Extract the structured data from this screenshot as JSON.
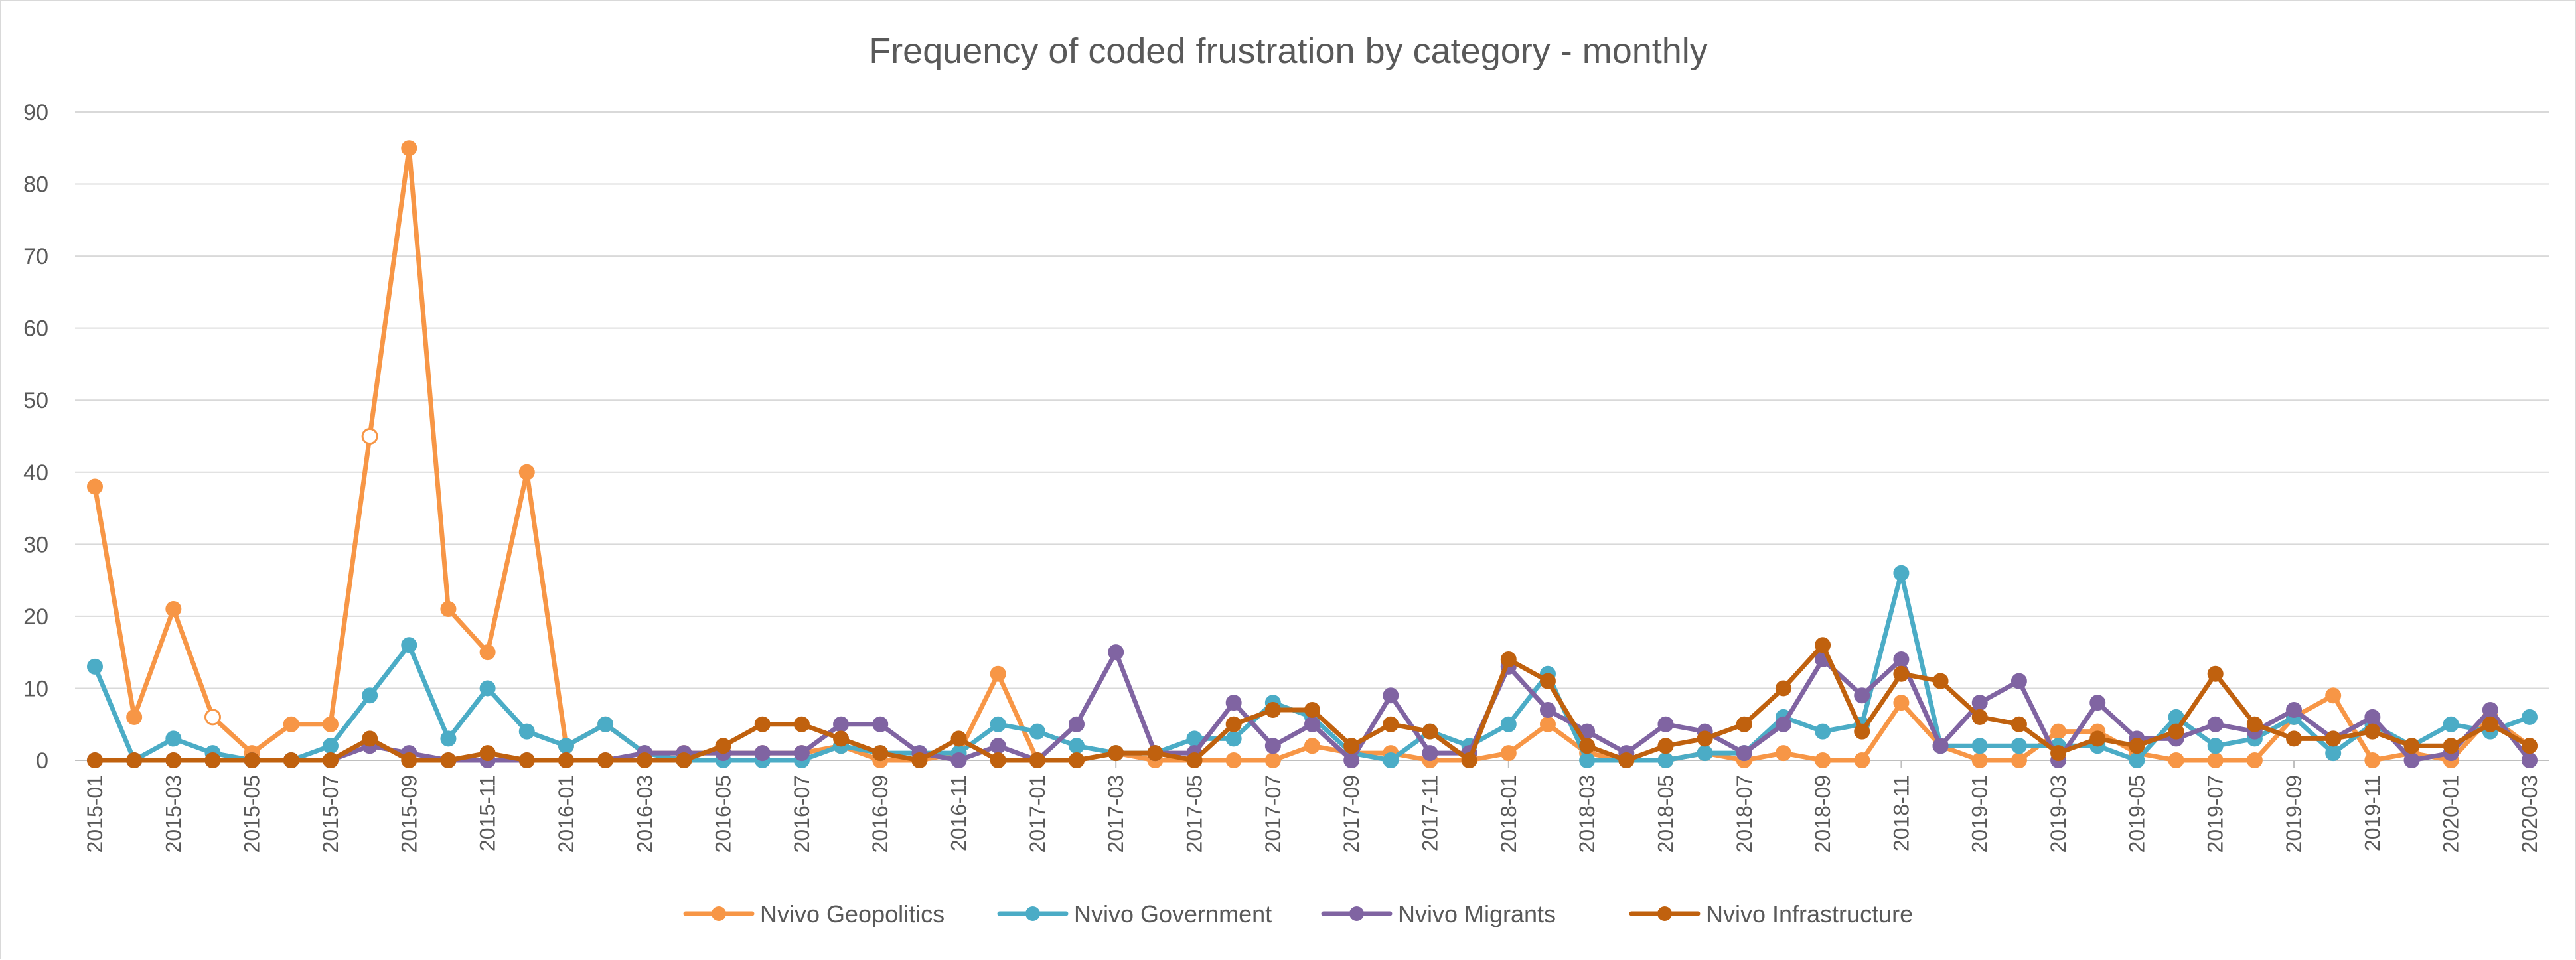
{
  "chart_data": {
    "type": "line",
    "title": "Frequency of coded frustration by category - monthly",
    "xlabel": "",
    "ylabel": "",
    "ylim": [
      0,
      90
    ],
    "yticks": [
      "0",
      "10",
      "20",
      "30",
      "40",
      "50",
      "60",
      "70",
      "80",
      "90"
    ],
    "grid": true,
    "legend_position": "bottom",
    "x": [
      "2015-01",
      "2015-02",
      "2015-03",
      "2015-04",
      "2015-05",
      "2015-06",
      "2015-07",
      "2015-08",
      "2015-09",
      "2015-10",
      "2015-11",
      "2015-12",
      "2016-01",
      "2016-02",
      "2016-03",
      "2016-04",
      "2016-05",
      "2016-06",
      "2016-07",
      "2016-08",
      "2016-09",
      "2016-10",
      "2016-11",
      "2016-12",
      "2017-01",
      "2017-02",
      "2017-03",
      "2017-04",
      "2017-05",
      "2017-06",
      "2017-07",
      "2017-08",
      "2017-09",
      "2017-10",
      "2017-11",
      "2017-12",
      "2018-01",
      "2018-02",
      "2018-03",
      "2018-04",
      "2018-05",
      "2018-06",
      "2018-07",
      "2018-08",
      "2018-09",
      "2018-10",
      "2018-11",
      "2018-12",
      "2019-01",
      "2019-02",
      "2019-03",
      "2019-04",
      "2019-05",
      "2019-06",
      "2019-07",
      "2019-08",
      "2019-09",
      "2019-10",
      "2019-11",
      "2019-12",
      "2020-01",
      "2020-02",
      "2020-03"
    ],
    "x_tick_labels": [
      "2015-01",
      "2015-03",
      "2015-05",
      "2015-07",
      "2015-09",
      "2015-11",
      "2016-01",
      "2016-03",
      "2016-05",
      "2016-07",
      "2016-09",
      "2016-11",
      "2017-01",
      "2017-03",
      "2017-05",
      "2017-07",
      "2017-09",
      "2017-11",
      "2018-01",
      "2018-03",
      "2018-05",
      "2018-07",
      "2018-09",
      "2018-11",
      "2019-01",
      "2019-03",
      "2019-05",
      "2019-07",
      "2019-09",
      "2019-11",
      "2020-01",
      "2020-03"
    ],
    "series": [
      {
        "name": "Nvivo Geopolitics",
        "color": "#f79646",
        "values": [
          38,
          6,
          21,
          6,
          1,
          5,
          5,
          45,
          85,
          21,
          15,
          40,
          2,
          5,
          1,
          1,
          1,
          1,
          1,
          2,
          0,
          0,
          1,
          12,
          0,
          0,
          1,
          0,
          0,
          0,
          0,
          2,
          1,
          1,
          0,
          0,
          1,
          5,
          1,
          0,
          0,
          1,
          0,
          1,
          0,
          0,
          8,
          2,
          0,
          0,
          4,
          4,
          1,
          0,
          0,
          0,
          6,
          9,
          0,
          1,
          0,
          6,
          2
        ],
        "hollow_points": [
          "2015-04",
          "2015-08"
        ]
      },
      {
        "name": "Nvivo Government",
        "color": "#4bacc6",
        "values": [
          13,
          0,
          3,
          1,
          0,
          0,
          2,
          9,
          16,
          3,
          10,
          4,
          2,
          5,
          1,
          0,
          0,
          0,
          0,
          2,
          1,
          1,
          1,
          5,
          4,
          2,
          1,
          1,
          3,
          3,
          8,
          6,
          1,
          0,
          4,
          2,
          5,
          12,
          0,
          0,
          0,
          1,
          1,
          6,
          4,
          5,
          26,
          2,
          2,
          2,
          2,
          2,
          0,
          6,
          2,
          3,
          6,
          1,
          5,
          2,
          5,
          4,
          6
        ]
      },
      {
        "name": "Nvivo Migrants",
        "color": "#8064a2",
        "values": [
          0,
          0,
          0,
          0,
          0,
          0,
          0,
          2,
          1,
          0,
          0,
          0,
          0,
          0,
          1,
          1,
          1,
          1,
          1,
          5,
          5,
          1,
          0,
          2,
          0,
          5,
          15,
          1,
          1,
          8,
          2,
          5,
          0,
          9,
          1,
          1,
          13,
          7,
          4,
          1,
          5,
          4,
          1,
          5,
          14,
          9,
          14,
          2,
          8,
          11,
          0,
          8,
          3,
          3,
          5,
          4,
          7,
          3,
          6,
          0,
          1,
          7,
          0
        ]
      },
      {
        "name": "Nvivo Infrastructure",
        "color": "#c0610e",
        "values": [
          0,
          0,
          0,
          0,
          0,
          0,
          0,
          3,
          0,
          0,
          1,
          0,
          0,
          0,
          0,
          0,
          2,
          5,
          5,
          3,
          1,
          0,
          3,
          0,
          0,
          0,
          1,
          1,
          0,
          5,
          7,
          7,
          2,
          5,
          4,
          0,
          14,
          11,
          2,
          0,
          2,
          3,
          5,
          10,
          16,
          4,
          12,
          11,
          6,
          5,
          1,
          3,
          2,
          4,
          12,
          5,
          3,
          3,
          4,
          2,
          2,
          5,
          2
        ]
      }
    ]
  }
}
